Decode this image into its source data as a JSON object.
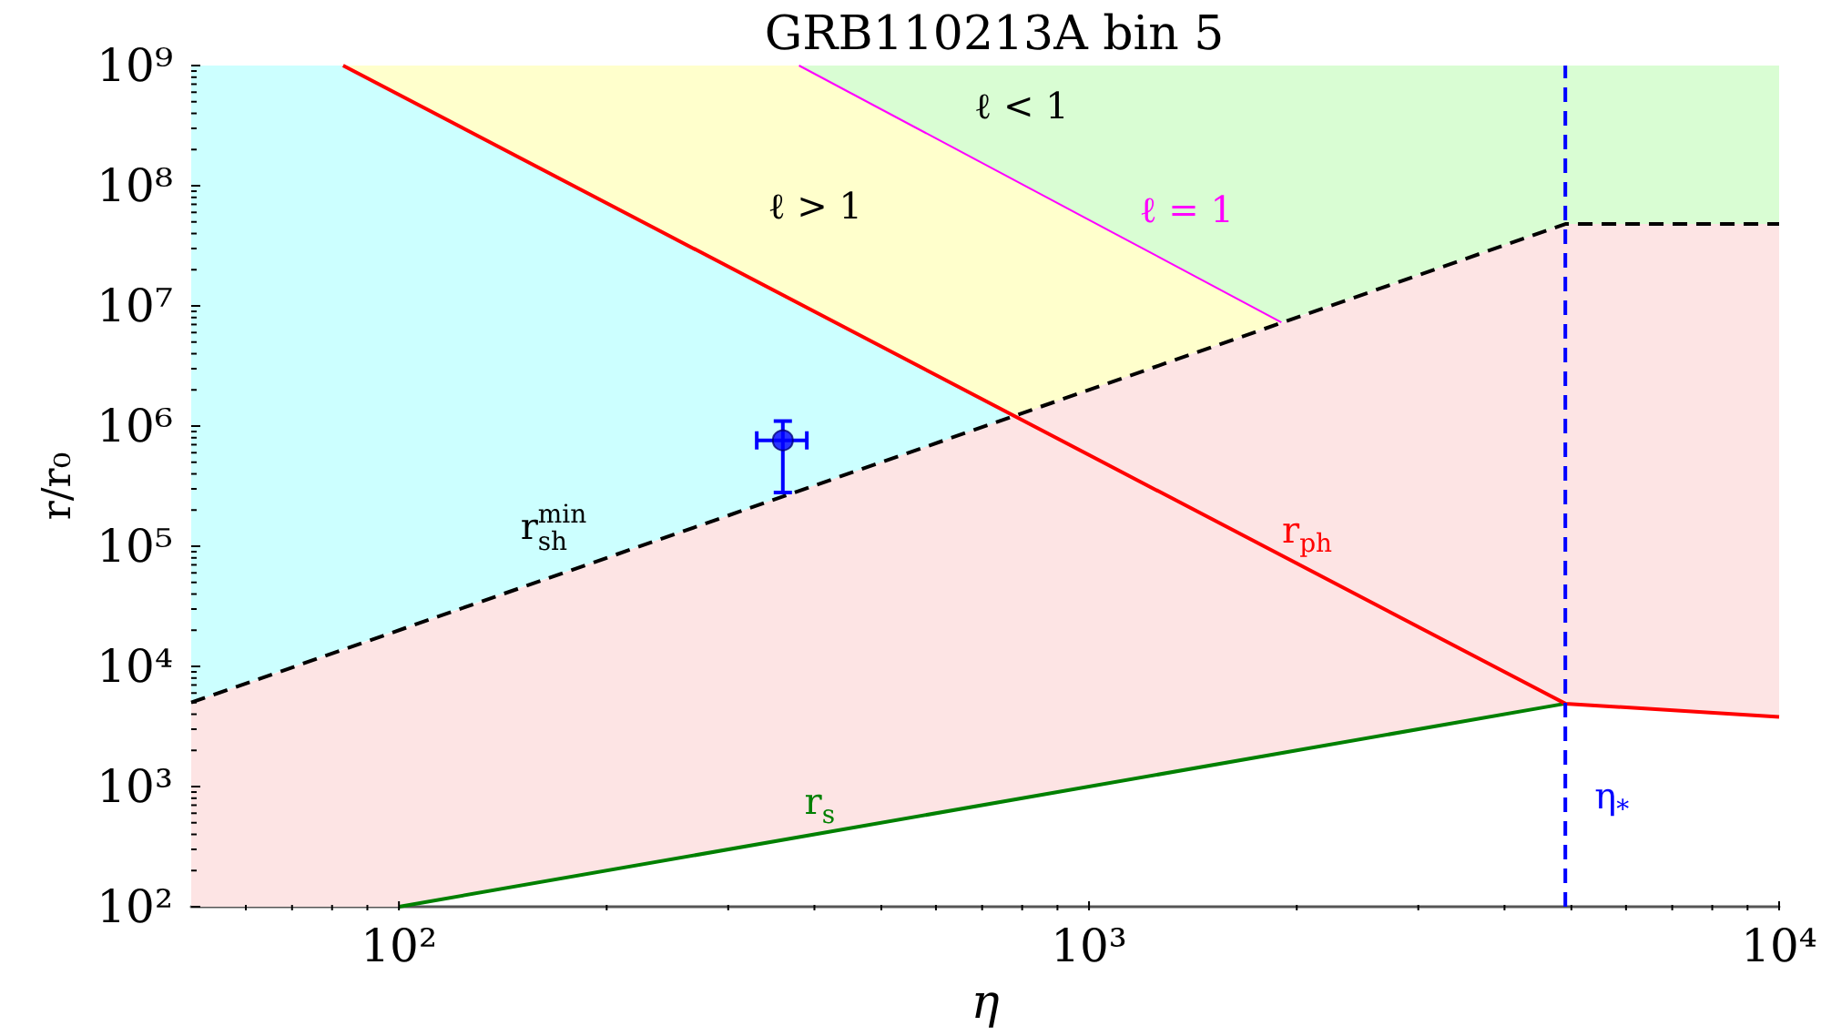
{
  "chart_data": {
    "type": "line",
    "title": "GRB110213A bin 5",
    "xlabel": "η",
    "ylabel": "r/r₀",
    "log": "xy",
    "xlim": [
      50,
      10000
    ],
    "ylim": [
      100,
      1000000000.0
    ],
    "xticks": [
      {
        "value": 60,
        "label": null
      },
      {
        "value": 70,
        "label": null
      },
      {
        "value": 80,
        "label": null
      },
      {
        "value": 90,
        "label": null
      },
      {
        "value": 100,
        "label": "10²"
      },
      {
        "value": 200,
        "label": null
      },
      {
        "value": 300,
        "label": null
      },
      {
        "value": 400,
        "label": null
      },
      {
        "value": 500,
        "label": null
      },
      {
        "value": 600,
        "label": null
      },
      {
        "value": 700,
        "label": null
      },
      {
        "value": 800,
        "label": null
      },
      {
        "value": 900,
        "label": null
      },
      {
        "value": 1000,
        "label": "10³"
      },
      {
        "value": 2000,
        "label": null
      },
      {
        "value": 3000,
        "label": null
      },
      {
        "value": 4000,
        "label": null
      },
      {
        "value": 5000,
        "label": null
      },
      {
        "value": 6000,
        "label": null
      },
      {
        "value": 7000,
        "label": null
      },
      {
        "value": 8000,
        "label": null
      },
      {
        "value": 9000,
        "label": null
      },
      {
        "value": 10000,
        "label": "10⁴"
      }
    ],
    "yticks": [
      {
        "value": 100,
        "label": "10²"
      },
      {
        "value": 200,
        "label": null
      },
      {
        "value": 300,
        "label": null
      },
      {
        "value": 400,
        "label": null
      },
      {
        "value": 500,
        "label": null
      },
      {
        "value": 600,
        "label": null
      },
      {
        "value": 700,
        "label": null
      },
      {
        "value": 800,
        "label": null
      },
      {
        "value": 900,
        "label": null
      },
      {
        "value": 1000,
        "label": "10³"
      },
      {
        "value": 2000,
        "label": null
      },
      {
        "value": 3000,
        "label": null
      },
      {
        "value": 4000,
        "label": null
      },
      {
        "value": 5000,
        "label": null
      },
      {
        "value": 6000,
        "label": null
      },
      {
        "value": 7000,
        "label": null
      },
      {
        "value": 8000,
        "label": null
      },
      {
        "value": 9000,
        "label": null
      },
      {
        "value": 10000.0,
        "label": "10⁴"
      },
      {
        "value": 20000.0,
        "label": null
      },
      {
        "value": 30000.0,
        "label": null
      },
      {
        "value": 40000.0,
        "label": null
      },
      {
        "value": 50000.0,
        "label": null
      },
      {
        "value": 60000.0,
        "label": null
      },
      {
        "value": 70000.0,
        "label": null
      },
      {
        "value": 80000.0,
        "label": null
      },
      {
        "value": 90000.0,
        "label": null
      },
      {
        "value": 100000.0,
        "label": "10⁵"
      },
      {
        "value": 200000.0,
        "label": null
      },
      {
        "value": 300000.0,
        "label": null
      },
      {
        "value": 400000.0,
        "label": null
      },
      {
        "value": 500000.0,
        "label": null
      },
      {
        "value": 600000.0,
        "label": null
      },
      {
        "value": 700000.0,
        "label": null
      },
      {
        "value": 800000.0,
        "label": null
      },
      {
        "value": 900000.0,
        "label": null
      },
      {
        "value": 1000000.0,
        "label": "10⁶"
      },
      {
        "value": 2000000.0,
        "label": null
      },
      {
        "value": 3000000.0,
        "label": null
      },
      {
        "value": 4000000.0,
        "label": null
      },
      {
        "value": 5000000.0,
        "label": null
      },
      {
        "value": 6000000.0,
        "label": null
      },
      {
        "value": 7000000.0,
        "label": null
      },
      {
        "value": 8000000.0,
        "label": null
      },
      {
        "value": 9000000.0,
        "label": null
      },
      {
        "value": 10000000.0,
        "label": "10⁷"
      },
      {
        "value": 20000000.0,
        "label": null
      },
      {
        "value": 30000000.0,
        "label": null
      },
      {
        "value": 40000000.0,
        "label": null
      },
      {
        "value": 50000000.0,
        "label": null
      },
      {
        "value": 60000000.0,
        "label": null
      },
      {
        "value": 70000000.0,
        "label": null
      },
      {
        "value": 80000000.0,
        "label": null
      },
      {
        "value": 90000000.0,
        "label": null
      },
      {
        "value": 100000000.0,
        "label": "10⁸"
      },
      {
        "value": 200000000.0,
        "label": null
      },
      {
        "value": 300000000.0,
        "label": null
      },
      {
        "value": 400000000.0,
        "label": null
      },
      {
        "value": 500000000.0,
        "label": null
      },
      {
        "value": 600000000.0,
        "label": null
      },
      {
        "value": 700000000.0,
        "label": null
      },
      {
        "value": 800000000.0,
        "label": null
      },
      {
        "value": 900000000.0,
        "label": null
      },
      {
        "value": 1000000000.0,
        "label": "10⁹"
      }
    ],
    "series": [
      {
        "type": "area",
        "color": "#ccffff",
        "x": [
          50,
          83,
          780
        ],
        "values": [
          null,
          null,
          null
        ],
        "upper": [
          1000000000.0,
          1000000000.0,
          1200000.0
        ],
        "lower": [
          5000,
          14000.0,
          1200000.0
        ]
      },
      {
        "type": "area",
        "color": "#ffffcc",
        "x": [
          83,
          380,
          780,
          1900
        ],
        "values": [
          null,
          null,
          null,
          null
        ],
        "upper": [
          1000000000.0,
          1000000000.0,
          110000000.0,
          7300000.0
        ],
        "lower": [
          1000000000.0,
          10000000.0,
          1200000.0,
          7300000.0
        ]
      },
      {
        "type": "area",
        "color": "#d9fdd3",
        "x": [
          380,
          1900,
          4900,
          10000
        ],
        "values": [
          null,
          null,
          null,
          null
        ],
        "upper": [
          1000000000.0,
          1000000000.0,
          1000000000.0,
          1000000000.0
        ],
        "lower": [
          1000000000.0,
          7300000.0,
          48000000.0,
          48000000.0
        ]
      },
      {
        "type": "area",
        "color": "#fde4e4",
        "x": [
          50,
          100,
          4900,
          10000
        ],
        "values": [
          null,
          null,
          null,
          null
        ],
        "upper": [
          5000,
          20000.0,
          48000000.0,
          48000000.0
        ],
        "lower": [
          100,
          100,
          4900,
          3800
        ]
      },
      {
        "name": "r$_{s}$",
        "color": "#008000",
        "x": [
          100,
          4900
        ],
        "values": [
          100,
          4900
        ]
      },
      {
        "name": "r$_{ph}$",
        "color": "#ff0000",
        "x": [
          83,
          4900,
          10000
        ],
        "values": [
          1000000000.0,
          4900,
          3800
        ]
      },
      {
        "name": "r$_{sh}$$^{min}$",
        "color": "#000000",
        "line_style": "dashed",
        "x": [
          50,
          4900,
          10000
        ],
        "values": [
          5000,
          48000000.0,
          48000000.0
        ]
      },
      {
        "name": "ℓ = 1",
        "color": "#ff00ff",
        "x": [
          380,
          1900
        ],
        "values": [
          1000000000.0,
          7300000.0
        ]
      },
      {
        "type": "scatter",
        "color": "#0000ff",
        "marker": "circle",
        "x": [
          360
        ],
        "values": [
          760000.0
        ],
        "errors": [
          [
            280000.0,
            1100000.0
          ]
        ],
        "xerrors": [
          [
            330,
            390
          ]
        ]
      }
    ],
    "ref_lines": [
      {
        "axis": "x",
        "value": 4900,
        "label": "η$_{*}$",
        "color": "#0000ff",
        "line_style": "dashed"
      }
    ],
    "annotations": [
      "ℓ > 1",
      "ℓ < 1"
    ]
  }
}
